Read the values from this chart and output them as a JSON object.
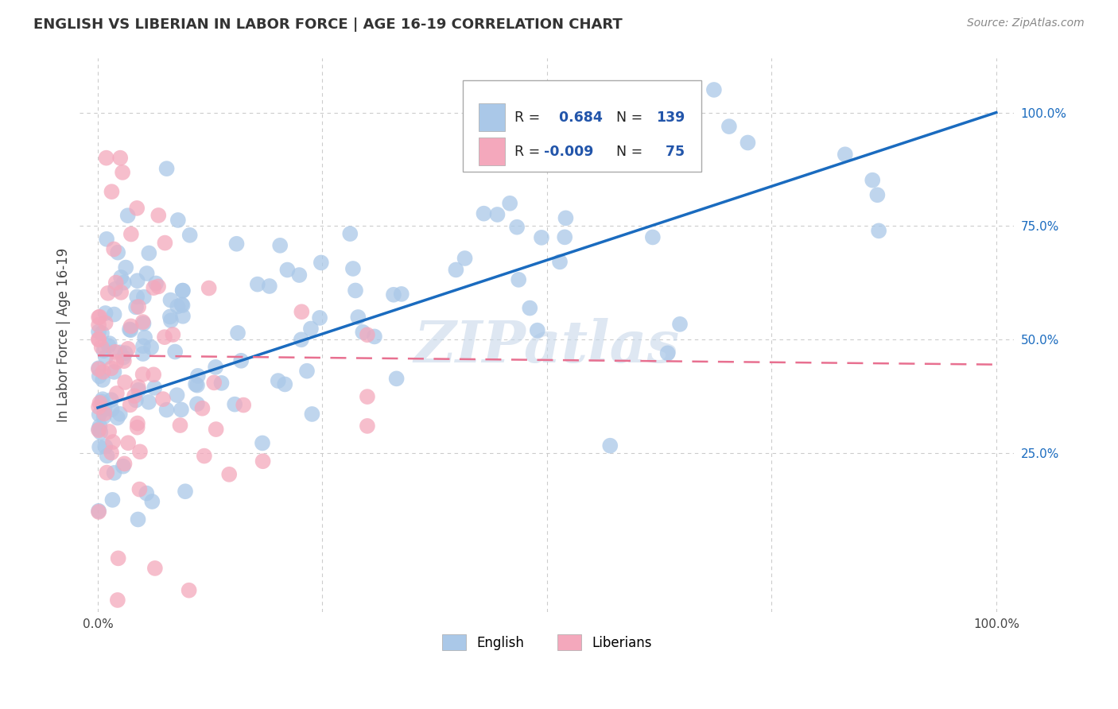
{
  "title": "ENGLISH VS LIBERIAN IN LABOR FORCE | AGE 16-19 CORRELATION CHART",
  "source_text": "Source: ZipAtlas.com",
  "ylabel": "In Labor Force | Age 16-19",
  "xlabel": "",
  "xlim": [
    -0.02,
    1.02
  ],
  "ylim": [
    -0.1,
    1.12
  ],
  "yticks": [
    0.25,
    0.5,
    0.75,
    1.0
  ],
  "ytick_labels": [
    "25.0%",
    "50.0%",
    "75.0%",
    "100.0%"
  ],
  "xtick_left": "0.0%",
  "xtick_right": "100.0%",
  "english_R": 0.684,
  "english_N": 139,
  "liberian_R": -0.009,
  "liberian_N": 75,
  "english_color": "#aac8e8",
  "liberian_color": "#f4a8bc",
  "english_line_color": "#1a6bbf",
  "liberian_line_color": "#e87090",
  "background_color": "#ffffff",
  "grid_color": "#cccccc",
  "watermark_text": "ZIPatlas",
  "title_color": "#333333",
  "legend_color_R": "#2255aa",
  "english_seed": 42,
  "liberian_seed": 123,
  "trend_line_y0_eng": 0.35,
  "trend_line_y1_eng": 1.0,
  "trend_line_y0_lib": 0.465,
  "trend_line_y1_lib": 0.445
}
